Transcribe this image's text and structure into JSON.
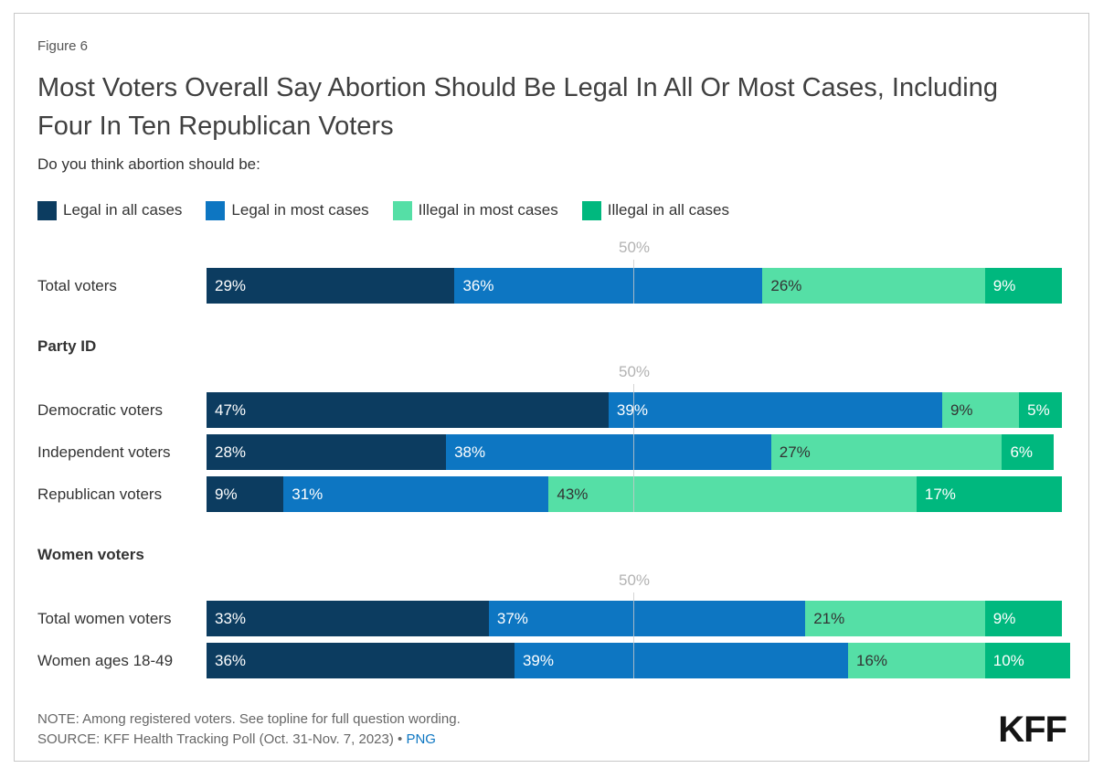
{
  "figure_label": "Figure 6",
  "title": "Most Voters Overall Say Abortion Should Be Legal In All Or Most Cases, Including Four In Ten Republican Voters",
  "subtitle": "Do you think abortion should be:",
  "chart_data": {
    "type": "bar",
    "variant": "horizontal-stacked",
    "unit": "%",
    "axis": {
      "xmax": 100,
      "gridline_value": 50,
      "gridline_label": "50%",
      "grid": "single-vertical-line-per-group"
    },
    "legend_position": "top-left",
    "series": [
      {
        "name": "Legal in all cases",
        "color": "#0c3c60",
        "label_color": "#ffffff"
      },
      {
        "name": "Legal in most cases",
        "color": "#0d76c2",
        "label_color": "#ffffff"
      },
      {
        "name": "Illegal in most cases",
        "color": "#55dfa6",
        "label_color": "#333333"
      },
      {
        "name": "Illegal in all cases",
        "color": "#00b87e",
        "label_color": "#ffffff"
      }
    ],
    "groups": [
      {
        "header": "",
        "rows": [
          {
            "label": "Total voters",
            "values": [
              29,
              36,
              26,
              9
            ]
          }
        ]
      },
      {
        "header": "Party ID",
        "rows": [
          {
            "label": "Democratic voters",
            "values": [
              47,
              39,
              9,
              5
            ]
          },
          {
            "label": "Independent voters",
            "values": [
              28,
              38,
              27,
              6
            ]
          },
          {
            "label": "Republican voters",
            "values": [
              9,
              31,
              43,
              17
            ]
          }
        ]
      },
      {
        "header": "Women voters",
        "rows": [
          {
            "label": "Total women voters",
            "values": [
              33,
              37,
              21,
              9
            ]
          },
          {
            "label": "Women ages 18-49",
            "values": [
              36,
              39,
              16,
              10
            ]
          }
        ]
      }
    ]
  },
  "footer": {
    "note": "NOTE: Among registered voters. See topline for full question wording.",
    "source_prefix": "SOURCE: KFF Health Tracking Poll (Oct. 31-Nov. 7, 2023) • ",
    "source_link": "PNG",
    "logo": "KFF"
  },
  "style_colors": {
    "card_border": "#c8c8c8",
    "title_text": "#404040",
    "body_text": "#333333",
    "muted_text": "#666666",
    "gridline_label": "#b3b3b3",
    "link": "#0d76c2"
  }
}
